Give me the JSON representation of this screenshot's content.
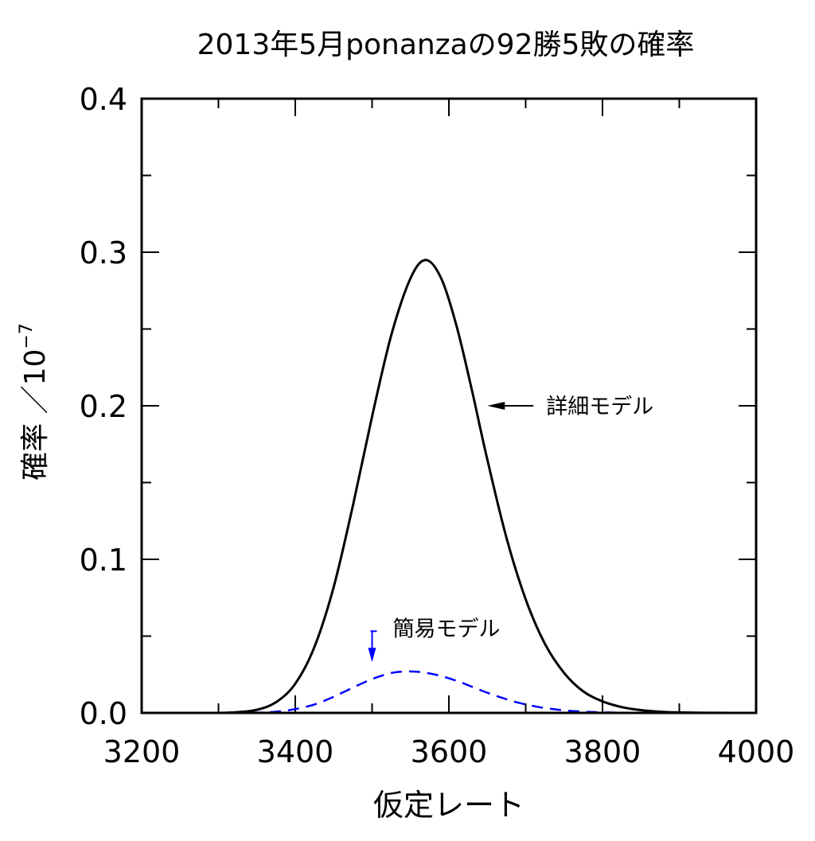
{
  "chart_data": {
    "type": "line",
    "title": "2013年5月ponanzaの92勝5敗の確率",
    "xlabel": "仮定レート",
    "ylabel": "確率 ／10",
    "ylabel_exponent": "−7",
    "xlim": [
      3200,
      4000
    ],
    "ylim": [
      0.0,
      0.4
    ],
    "x_ticks": [
      3200,
      3400,
      3600,
      3800,
      4000
    ],
    "x_tick_labels": [
      "3200",
      "3400",
      "3600",
      "3800",
      "4000"
    ],
    "y_ticks": [
      0.0,
      0.1,
      0.2,
      0.3,
      0.4
    ],
    "y_tick_labels": [
      "0.0",
      "0.1",
      "0.2",
      "0.3",
      "0.4"
    ],
    "grid": false,
    "series": [
      {
        "name": "詳細モデル",
        "color": "#000000",
        "dash": "solid",
        "x": [
          3200,
          3250,
          3300,
          3325,
          3350,
          3375,
          3400,
          3425,
          3450,
          3475,
          3500,
          3525,
          3550,
          3570,
          3590,
          3610,
          3630,
          3650,
          3675,
          3700,
          3725,
          3750,
          3775,
          3800,
          3825,
          3850,
          3875,
          3900,
          3950,
          4000
        ],
        "y": [
          0.0,
          0.0,
          0.0,
          0.0005,
          0.002,
          0.007,
          0.019,
          0.043,
          0.082,
          0.135,
          0.193,
          0.246,
          0.283,
          0.295,
          0.283,
          0.252,
          0.21,
          0.165,
          0.114,
          0.074,
          0.045,
          0.026,
          0.014,
          0.0075,
          0.0038,
          0.0018,
          0.0008,
          0.0003,
          5e-05,
          0.0
        ]
      },
      {
        "name": "簡易モデル",
        "color": "#0000ff",
        "dash": "dashed",
        "x": [
          3200,
          3300,
          3350,
          3375,
          3400,
          3425,
          3450,
          3475,
          3500,
          3525,
          3545,
          3565,
          3590,
          3615,
          3640,
          3665,
          3690,
          3715,
          3740,
          3765,
          3790,
          3825,
          3875,
          4000
        ],
        "y": [
          0.0,
          0.0,
          0.0002,
          0.0008,
          0.0025,
          0.0055,
          0.0105,
          0.0165,
          0.022,
          0.026,
          0.027,
          0.0265,
          0.024,
          0.02,
          0.015,
          0.0105,
          0.0067,
          0.004,
          0.0022,
          0.0011,
          0.0005,
          0.00015,
          0.0,
          0.0
        ]
      }
    ],
    "annotations": [
      {
        "text": "詳細モデル",
        "color": "#000000",
        "arrow": "points left to black curve",
        "at_x": 3650,
        "at_y": 0.2
      },
      {
        "text": "簡易モデル",
        "color": "#0000ff",
        "arrow": "points down to blue curve",
        "at_x": 3500,
        "at_y": 0.033
      }
    ]
  }
}
